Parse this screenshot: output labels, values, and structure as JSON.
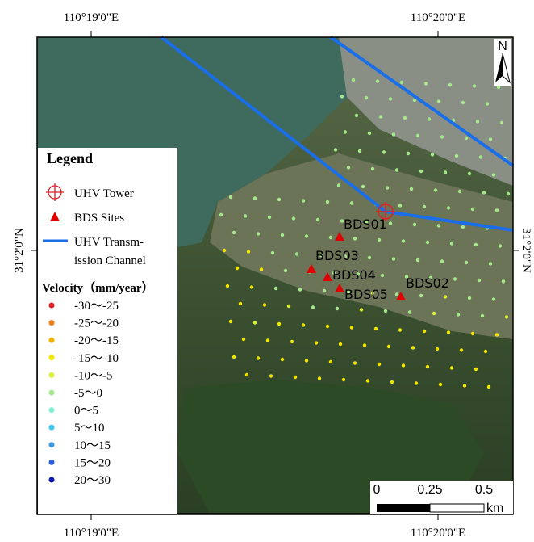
{
  "coordinates": {
    "top": [
      "110°19'0\"E",
      "110°20'0\"E"
    ],
    "bottom": [
      "110°19'0\"E",
      "110°20'0\"E"
    ],
    "left": "31°2'0\"N",
    "right": "31°2'0\"N"
  },
  "north": "N",
  "legend": {
    "title": "Legend",
    "tower": "UHV Tower",
    "sites": "BDS Sites",
    "channel": [
      "UHV Transm-",
      "ission Channel"
    ],
    "velocity_title": "Velocity（mm/year）",
    "classes": [
      {
        "label": "-30～-25",
        "color": "#e31a1c"
      },
      {
        "label": "-25～-20",
        "color": "#f07f1f"
      },
      {
        "label": "-20～-15",
        "color": "#f5b400"
      },
      {
        "label": "-15～-10",
        "color": "#f2e600"
      },
      {
        "label": "-10～-5",
        "color": "#dcf03a"
      },
      {
        "label": "-5～0",
        "color": "#a6e88c"
      },
      {
        "label": "0～5",
        "color": "#7ff0d2"
      },
      {
        "label": "5～10",
        "color": "#3cc8f0"
      },
      {
        "label": "10～15",
        "color": "#3a98e0"
      },
      {
        "label": "15～20",
        "color": "#2e5cd8"
      },
      {
        "label": "20～30",
        "color": "#0a18b8"
      }
    ]
  },
  "sites": [
    "BDS01",
    "BDS02",
    "BDS03",
    "BDS04",
    "BDS05"
  ],
  "scale_bar": {
    "labels": [
      "0",
      "0.25",
      "0.5"
    ],
    "unit": "km"
  }
}
